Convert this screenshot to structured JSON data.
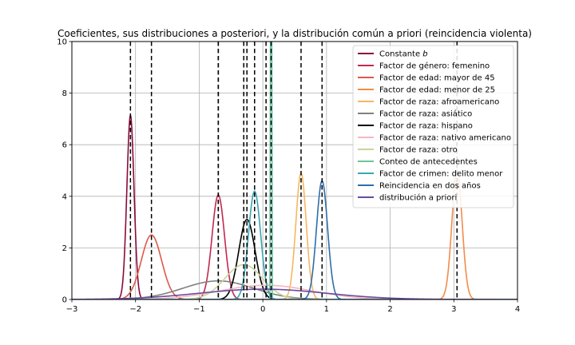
{
  "chart_data": {
    "type": "line",
    "title": "Coeficientes, sus distribuciones a posteriori, y la distribución común a priori (reincidencia violenta)",
    "xlabel": "",
    "ylabel": "",
    "xlim": [
      -3,
      4
    ],
    "ylim": [
      0,
      10
    ],
    "x_ticks": [
      "-3",
      "-2",
      "-1",
      "0",
      "1",
      "2",
      "3",
      "4"
    ],
    "y_ticks": [
      "0",
      "2",
      "4",
      "6",
      "8",
      "10"
    ],
    "grid": true,
    "legend_position": "top-right",
    "series": [
      {
        "name": "Constante b",
        "name_main": "Constante ",
        "name_italic": "b",
        "color": "#8b0a3c",
        "mean": -2.08,
        "peak": 7.15,
        "vline": true
      },
      {
        "name": "Factor de género: femenino",
        "color": "#c1294f",
        "mean": -0.7,
        "peak": 4.05,
        "vline": true
      },
      {
        "name": "Factor de edad: mayor de 45",
        "color": "#dc5a4a",
        "mean": -1.75,
        "peak": 2.5,
        "vline": true
      },
      {
        "name": "Factor de edad: menor de 25",
        "color": "#f28c4a",
        "mean": 3.05,
        "peak": 5.0,
        "vline": true
      },
      {
        "name": "Factor de raza: afroamericano",
        "color": "#f5b860",
        "mean": 0.6,
        "peak": 4.9,
        "vline": true
      },
      {
        "name": "Factor de raza: asiático",
        "color": "#808080",
        "mean": -0.7,
        "peak": 0.72,
        "vline": true
      },
      {
        "name": "Factor de raza: hispano",
        "color": "#000000",
        "mean": -0.25,
        "peak": 3.1,
        "vline": true
      },
      {
        "name": "Factor de raza: nativo americano",
        "color": "#f7b6c2",
        "mean": 0.05,
        "peak": 0.55,
        "vline": true
      },
      {
        "name": "Factor de raza: otro",
        "color": "#c7d59a",
        "mean": -0.3,
        "peak": 1.35,
        "vline": true
      },
      {
        "name": "Conteo de antecedentes",
        "color": "#6bc4a0",
        "mean": 0.13,
        "peak": 80,
        "vline": true
      },
      {
        "name": "Factor de crimen: delito menor",
        "color": "#3aa6b4",
        "mean": -0.13,
        "peak": 4.2,
        "vline": true
      },
      {
        "name": "Reincidencia en dos años",
        "color": "#2e6fa8",
        "mean": 0.93,
        "peak": 4.6,
        "vline": true
      },
      {
        "name": "distribución a priori",
        "color": "#6a4c9c",
        "mean": 0.0,
        "peak": 0.4,
        "vline": false
      }
    ]
  }
}
